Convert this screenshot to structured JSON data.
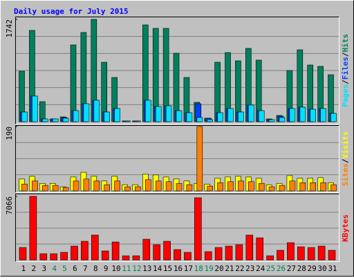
{
  "chart_data": [
    {
      "type": "bar",
      "title": "Daily usage for July 2015",
      "ylim": [
        0,
        1742
      ],
      "yticks": [
        1742
      ],
      "grid": true,
      "legend_separator": "/",
      "series": [
        {
          "name": "Pages",
          "color": "#00e0ff",
          "values": [
            165,
            436,
            47,
            47,
            59,
            188,
            306,
            365,
            165,
            224,
            12,
            12,
            365,
            259,
            271,
            188,
            153,
            71,
            35,
            153,
            224,
            165,
            283,
            188,
            35,
            71,
            224,
            247,
            212,
            224,
            141
          ]
        },
        {
          "name": "Files",
          "color": "#0040ff",
          "values": [
            165,
            436,
            47,
            47,
            71,
            188,
            306,
            365,
            165,
            224,
            12,
            12,
            365,
            259,
            271,
            188,
            153,
            306,
            59,
            153,
            224,
            165,
            283,
            188,
            35,
            94,
            224,
            247,
            212,
            224,
            141
          ]
        },
        {
          "name": "Hits",
          "color": "#00805c",
          "values": [
            859,
            1554,
            341,
            47,
            82,
            1307,
            1519,
            1742,
            1012,
            753,
            12,
            12,
            1648,
            1589,
            1589,
            1165,
            753,
            330,
            59,
            1012,
            1177,
            1036,
            1248,
            1048,
            47,
            106,
            871,
            1224,
            965,
            942,
            800
          ]
        }
      ]
    },
    {
      "type": "bar",
      "ylim": [
        0,
        190
      ],
      "yticks": [
        190
      ],
      "grid": true,
      "legend_separator": "/",
      "series": [
        {
          "name": "Sites",
          "color": "#ff8000",
          "values": [
            20,
            29,
            16,
            16,
            10,
            29,
            35,
            29,
            18,
            29,
            12,
            12,
            33,
            29,
            27,
            22,
            18,
            190,
            14,
            24,
            27,
            29,
            27,
            22,
            12,
            16,
            29,
            24,
            24,
            24,
            18
          ]
        },
        {
          "name": "Visits",
          "color": "#ffff00",
          "values": [
            35,
            43,
            22,
            22,
            12,
            41,
            55,
            43,
            29,
            43,
            18,
            18,
            49,
            47,
            41,
            35,
            29,
            22,
            20,
            37,
            41,
            43,
            41,
            37,
            18,
            22,
            45,
            37,
            37,
            39,
            24
          ]
        }
      ]
    },
    {
      "type": "bar",
      "ylim": [
        0,
        7066
      ],
      "yticks": [
        7066
      ],
      "grid": true,
      "categories": [
        "1",
        "2",
        "3",
        "4",
        "5",
        "6",
        "7",
        "8",
        "9",
        "10",
        "11",
        "12",
        "13",
        "14",
        "15",
        "16",
        "17",
        "18",
        "19",
        "20",
        "21",
        "22",
        "23",
        "24",
        "25",
        "26",
        "27",
        "28",
        "29",
        "30",
        "31"
      ],
      "category_colors": [
        "#000000",
        "#000000",
        "#000000",
        "#00805c",
        "#00805c",
        "#000000",
        "#000000",
        "#000000",
        "#000000",
        "#000000",
        "#00805c",
        "#00805c",
        "#000000",
        "#000000",
        "#000000",
        "#000000",
        "#000000",
        "#00805c",
        "#00805c",
        "#000000",
        "#000000",
        "#000000",
        "#000000",
        "#000000",
        "#00805c",
        "#00805c",
        "#000000",
        "#000000",
        "#000000",
        "#000000",
        "#000000"
      ],
      "series": [
        {
          "name": "KBytes",
          "color": "#ff0000",
          "values": [
            1382,
            7066,
            691,
            691,
            845,
            1536,
            2074,
            2765,
            998,
            1997,
            461,
            461,
            2304,
            1690,
            2074,
            1152,
            845,
            6912,
            922,
            1382,
            1536,
            1690,
            2765,
            2458,
            461,
            1075,
            1920,
            1459,
            1382,
            1536,
            1075
          ]
        }
      ]
    }
  ]
}
